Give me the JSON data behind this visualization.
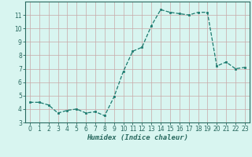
{
  "x": [
    0,
    1,
    2,
    3,
    4,
    5,
    6,
    7,
    8,
    9,
    10,
    11,
    12,
    13,
    14,
    15,
    16,
    17,
    18,
    19,
    20,
    21,
    22,
    23
  ],
  "y": [
    4.5,
    4.5,
    4.3,
    3.7,
    3.9,
    4.0,
    3.7,
    3.8,
    3.5,
    4.9,
    6.8,
    8.3,
    8.6,
    10.2,
    11.4,
    11.2,
    11.1,
    11.0,
    11.2,
    11.2,
    7.2,
    7.5,
    7.0,
    7.1
  ],
  "xlabel": "Humidex (Indice chaleur)",
  "ylim": [
    3,
    12
  ],
  "xlim": [
    -0.5,
    23.5
  ],
  "yticks": [
    3,
    4,
    5,
    6,
    7,
    8,
    9,
    10,
    11
  ],
  "xticks": [
    0,
    1,
    2,
    3,
    4,
    5,
    6,
    7,
    8,
    9,
    10,
    11,
    12,
    13,
    14,
    15,
    16,
    17,
    18,
    19,
    20,
    21,
    22,
    23
  ],
  "line_color": "#1a7a6e",
  "marker_color": "#1a7a6e",
  "bg_color": "#d8f5f0",
  "grid_color": "#c8a8a8",
  "axis_color": "#2a6a60",
  "tick_fontsize": 5.5,
  "xlabel_fontsize": 6.5
}
